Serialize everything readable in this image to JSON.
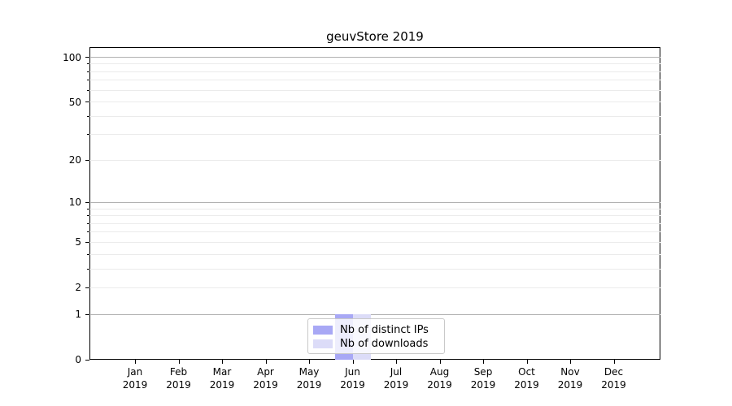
{
  "figure": {
    "title": "geuvStore 2019",
    "background": "#ffffff"
  },
  "chart_data": {
    "type": "bar",
    "title": "geuvStore 2019",
    "xlabel": "",
    "ylabel": "",
    "categories": [
      "Jan",
      "Feb",
      "Mar",
      "Apr",
      "May",
      "Jun",
      "Jul",
      "Aug",
      "Sep",
      "Oct",
      "Nov",
      "Dec"
    ],
    "category_year": "2019",
    "series": [
      {
        "name": "Nb of distinct IPs",
        "color": "#a8a8f5",
        "values": [
          0,
          0,
          0,
          0,
          0,
          1,
          0,
          0,
          0,
          0,
          0,
          0
        ]
      },
      {
        "name": "Nb of downloads",
        "color": "#dcdcf8",
        "values": [
          0,
          0,
          0,
          0,
          0,
          1,
          0,
          0,
          0,
          0,
          0,
          0
        ]
      }
    ],
    "y_axis": {
      "scale": "log1p",
      "ylim": [
        0,
        117
      ],
      "tick_values": [
        0,
        1,
        2,
        5,
        10,
        20,
        50,
        100
      ],
      "tick_labels": [
        "0",
        "1",
        "2",
        "5",
        "10",
        "20",
        "50",
        "100"
      ],
      "major_gridlines": [
        1,
        10,
        100
      ],
      "minor_gridlines": [
        2,
        3,
        4,
        5,
        6,
        7,
        8,
        9,
        20,
        30,
        40,
        50,
        60,
        70,
        80,
        90
      ]
    },
    "grid": {
      "orientation": "horizontal",
      "major_color": "#b0b0b0",
      "minor_color": "#ebebeb"
    },
    "legend": {
      "location": "lower-center-inside",
      "entries": [
        "Nb of distinct IPs",
        "Nb of downloads"
      ]
    },
    "colors": {
      "spine": "#000000",
      "text": "#000000",
      "background": "#ffffff"
    }
  }
}
